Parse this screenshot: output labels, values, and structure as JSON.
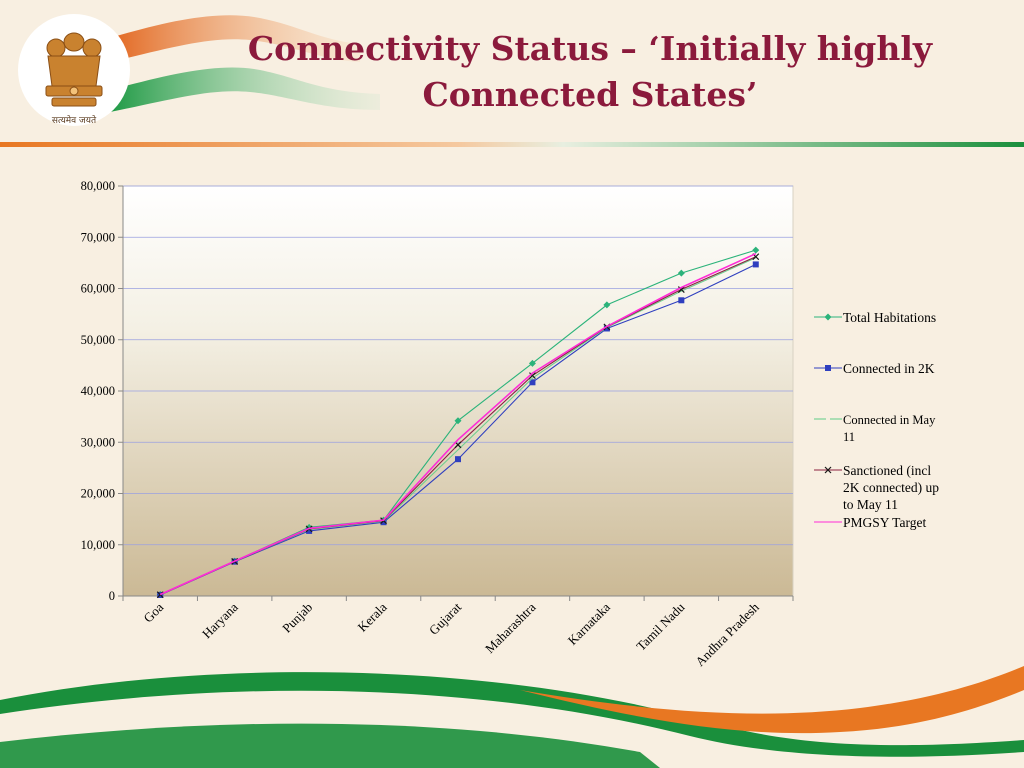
{
  "slide": {
    "title_line1": "Connectivity Status – ‘Initially highly",
    "title_line2": "Connected States’",
    "emblem_motto": "सत्यमेव जयते"
  },
  "colors": {
    "title": "#8b1a3c",
    "saffron": "#e87722",
    "green": "#1a8f3c",
    "background": "#f8efe1"
  },
  "chart_data": {
    "type": "line",
    "categories": [
      "Goa",
      "Haryana",
      "Punjab",
      "Kerala",
      "Gujarat",
      "Maharashtra",
      "Karnataka",
      "Tamil Nadu",
      "Andhra Pradesh"
    ],
    "ylim": [
      0,
      80000
    ],
    "yticks": [
      0,
      10000,
      20000,
      30000,
      40000,
      50000,
      60000,
      70000,
      80000
    ],
    "ytick_labels": [
      "0",
      "10,000",
      "20,000",
      "30,000",
      "40,000",
      "50,000",
      "60,000",
      "70,000",
      "80,000"
    ],
    "grid": true,
    "legend_position": "right",
    "series": [
      {
        "name": "Total Habitations",
        "color": "#2bb37a",
        "marker": "diamond",
        "values": [
          300,
          6800,
          13400,
          14800,
          34200,
          45400,
          56800,
          63000,
          67500
        ]
      },
      {
        "name": "Connected in 2K",
        "color": "#2f3fbf",
        "marker": "square",
        "values": [
          200,
          6700,
          12700,
          14400,
          26700,
          41700,
          52200,
          57700,
          64700
        ]
      },
      {
        "name": "Connected in May 11",
        "color": "#6fcf8f",
        "marker": "none",
        "values": [
          250,
          6750,
          13000,
          14600,
          28500,
          42500,
          52400,
          59500,
          66000
        ]
      },
      {
        "name": "Sanctioned (incl 2K connected) up to May 11",
        "color": "#8b2040",
        "marker": "x",
        "values": [
          250,
          6750,
          13100,
          14700,
          29500,
          43000,
          52500,
          59800,
          66200
        ]
      },
      {
        "name": "PMGSY Target",
        "color": "#ff2bd6",
        "marker": "none",
        "values": [
          300,
          6800,
          13200,
          14800,
          30500,
          43500,
          52600,
          60200,
          66800
        ]
      }
    ]
  },
  "legend": {
    "items": [
      {
        "lines": [
          "Total Habitations"
        ]
      },
      {
        "lines": [
          "Connected in 2K"
        ]
      },
      {
        "lines": [
          "Connected in May",
          "11"
        ]
      },
      {
        "lines": [
          "Sanctioned (incl",
          "2K connected) up",
          "to May 11"
        ]
      },
      {
        "lines": [
          "PMGSY Target"
        ]
      }
    ]
  }
}
